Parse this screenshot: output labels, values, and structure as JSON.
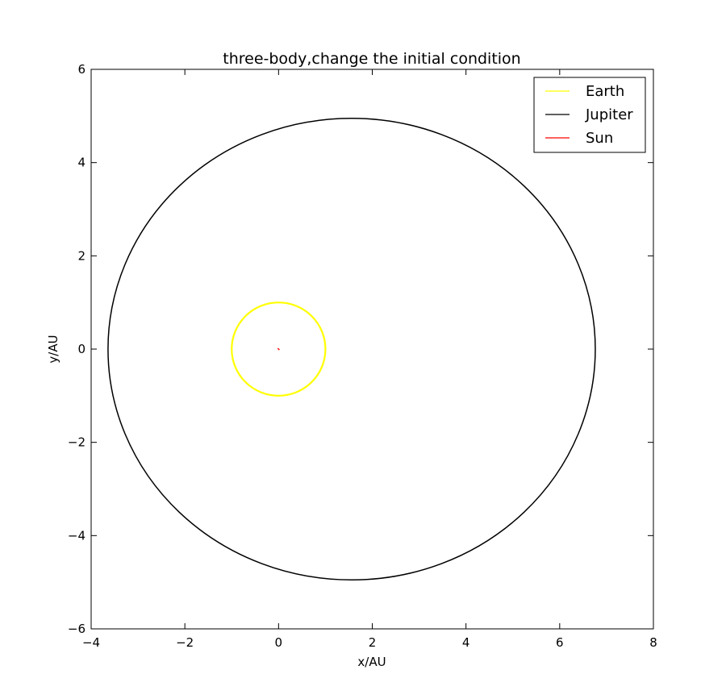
{
  "chart_data": {
    "type": "line",
    "title": "three-body,change the initial condition",
    "xlabel": "x/AU",
    "ylabel": "y/AU",
    "xlim": [
      -4,
      8
    ],
    "ylim": [
      -6,
      6
    ],
    "xticks": [
      -4,
      -2,
      0,
      2,
      4,
      6,
      8
    ],
    "yticks": [
      -6,
      -4,
      -2,
      0,
      2,
      4,
      6
    ],
    "xtick_labels": [
      "−4",
      "−2",
      "0",
      "2",
      "4",
      "6",
      "8"
    ],
    "ytick_labels": [
      "−6",
      "−4",
      "−2",
      "0",
      "2",
      "4",
      "6"
    ],
    "grid": false,
    "legend_position": "top-right",
    "series": [
      {
        "name": "Earth",
        "color": "#ffff00",
        "shape": "ellipse",
        "center": [
          0.0,
          0.0
        ],
        "radius_x": 1.0,
        "radius_y": 1.0
      },
      {
        "name": "Jupiter",
        "color": "#000000",
        "shape": "ellipse",
        "center": [
          1.56,
          0.0
        ],
        "radius_x": 5.2,
        "radius_y": 4.95
      },
      {
        "name": "Sun",
        "color": "#ff0000",
        "shape": "point",
        "center": [
          0.0,
          0.0
        ],
        "radius_x": 0.0,
        "radius_y": 0.0
      }
    ]
  }
}
